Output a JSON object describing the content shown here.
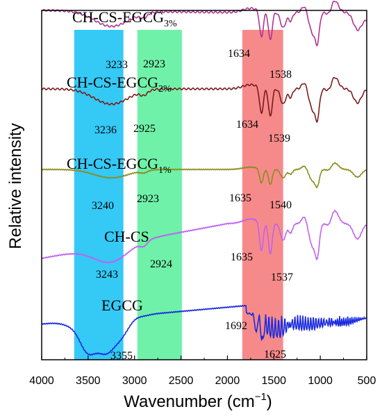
{
  "chart_data": {
    "type": "line",
    "xlabel": "Wavenumber (cm",
    "xlabel_sup": "−1",
    "xlabel_close": ")",
    "ylabel": "Relative intensity",
    "xlim": [
      4000,
      500
    ],
    "x_reversed": true,
    "x_ticks": [
      4000,
      3500,
      3000,
      2500,
      2000,
      1500,
      1000,
      500
    ],
    "x_tick_labels": [
      "4000",
      "3500",
      "3000",
      "2500",
      "2000",
      "1500",
      "1000",
      "500"
    ],
    "shaded_regions": [
      {
        "from": 3650,
        "to": 3120,
        "color": "#1fc3f5"
      },
      {
        "from": 2970,
        "to": 2490,
        "color": "#61f0a0"
      },
      {
        "from": 1840,
        "to": 1400,
        "color": "#f57d7d"
      }
    ],
    "series": [
      {
        "key": "egcg3",
        "label_main": "CH-CS-EGCG",
        "label_sub": "3%",
        "color": "#b0338f",
        "peaks": [
          "3233",
          "2923",
          "1634",
          "1538"
        ]
      },
      {
        "key": "egcg2",
        "label_main": "CH-CS-EGCG",
        "label_sub": "2%",
        "color": "#7a1a1a",
        "peaks": [
          "3236",
          "2925",
          "1634",
          "1539"
        ]
      },
      {
        "key": "egcg1",
        "label_main": "CH-CS-EGCG",
        "label_sub": "1%",
        "color": "#8c8c1e",
        "peaks": [
          "3240",
          "2923",
          "1635",
          "1540"
        ]
      },
      {
        "key": "chcs",
        "label_main": "CH-CS",
        "label_sub": "",
        "color": "#c060f0",
        "peaks": [
          "3243",
          "2924",
          "1635",
          "1537"
        ]
      },
      {
        "key": "egcg",
        "label_main": "EGCG",
        "label_sub": "",
        "color": "#1a2ae0",
        "peaks": [
          "3355",
          "1692",
          "1625"
        ]
      }
    ]
  }
}
